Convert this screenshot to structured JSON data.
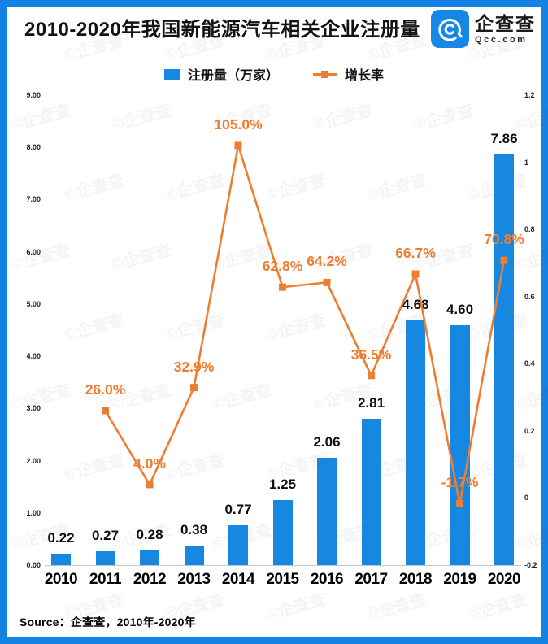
{
  "frame": {
    "border_color": "#1482E4"
  },
  "header": {
    "title": "2010-2020年我国新能源汽车相关企业注册量",
    "logo": {
      "name": "企查查",
      "domain": "Qcc.com"
    }
  },
  "legend": [
    {
      "label": "注册量（万家）",
      "type": "bar",
      "color": "#1788E1"
    },
    {
      "label": "增长率",
      "type": "line",
      "color": "#ED7D31"
    }
  ],
  "watermark": {
    "text": "©企查查"
  },
  "source_note": "Source：企查查，2010年-2020年",
  "chart_data": {
    "type": "bar+line combo",
    "title": "2010-2020年我国新能源汽车相关企业注册量",
    "categories": [
      "2010",
      "2011",
      "2012",
      "2013",
      "2014",
      "2015",
      "2016",
      "2017",
      "2018",
      "2019",
      "2020"
    ],
    "series": [
      {
        "name": "注册量（万家）",
        "type": "bar",
        "axis": "left",
        "color": "#1788E1",
        "values": [
          0.22,
          0.27,
          0.28,
          0.38,
          0.77,
          1.25,
          2.06,
          2.81,
          4.68,
          4.6,
          7.86
        ],
        "labels": [
          "0.22",
          "0.27",
          "0.28",
          "0.38",
          "0.77",
          "1.25",
          "2.06",
          "2.81",
          "4.68",
          "4.60",
          "7.86"
        ]
      },
      {
        "name": "增长率",
        "type": "line",
        "axis": "right",
        "color": "#ED7D31",
        "values_percent": [
          null,
          26.0,
          4.0,
          32.9,
          105.0,
          62.8,
          64.2,
          36.5,
          66.7,
          -1.7,
          70.8
        ],
        "labels": [
          null,
          "26.0%",
          "4.0%",
          "32.9%",
          "105.0%",
          "62.8%",
          "64.2%",
          "36.5%",
          "66.7%",
          "-1.7%",
          "70.8%"
        ]
      }
    ],
    "left_axis": {
      "min": 0,
      "max": 9,
      "ticks": [
        "9.00",
        "8.00",
        "7.00",
        "6.00",
        "5.00",
        "4.00",
        "3.00",
        "2.00",
        "1.00",
        "0.00"
      ]
    },
    "right_axis": {
      "min": -0.2,
      "max": 1.2,
      "ticks": [
        "1.2",
        "1",
        "0.8",
        "0.6",
        "0.4",
        "0.2",
        "0",
        "-0.2"
      ]
    },
    "grid": "off",
    "legend_position": "top-center"
  }
}
